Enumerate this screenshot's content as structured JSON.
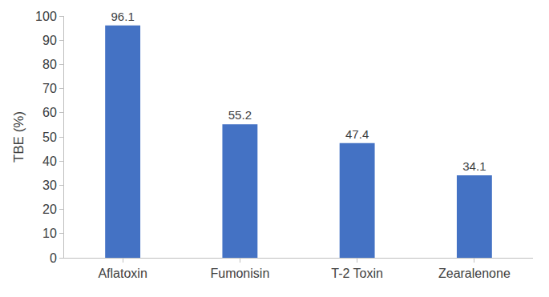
{
  "chart_data": {
    "type": "bar",
    "y_label": "TBE (%)",
    "categories": [
      "Aflatoxin",
      "Fumonisin",
      "T-2 Toxin",
      "Zearalenone"
    ],
    "values": [
      96.1,
      55.2,
      47.4,
      34.1
    ],
    "color": "#4472c4",
    "ylim": [
      0,
      100
    ],
    "yticks": [
      0,
      10,
      20,
      30,
      40,
      50,
      60,
      70,
      80,
      90,
      100
    ],
    "grid": false,
    "data_labels": true
  }
}
